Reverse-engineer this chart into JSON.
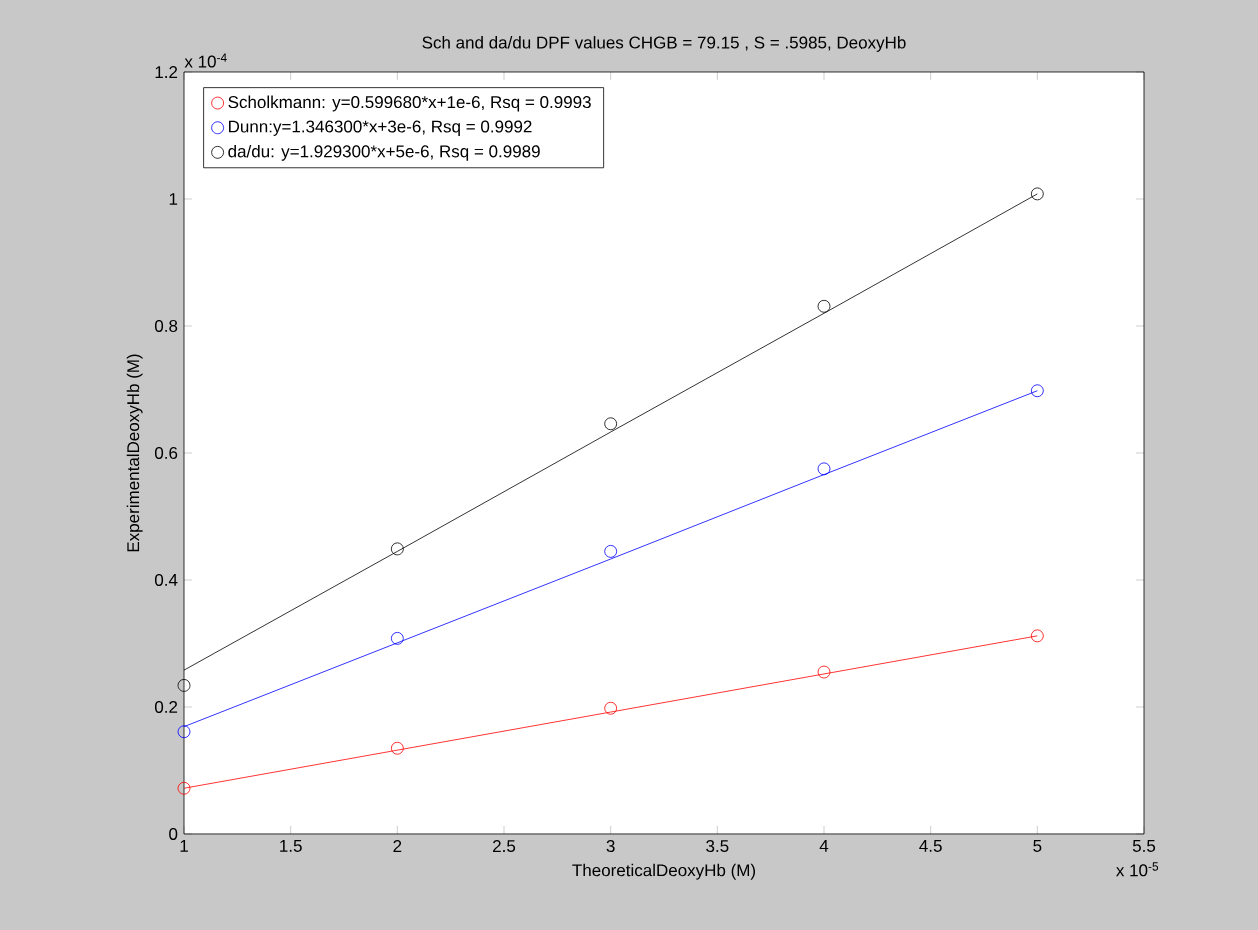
{
  "chart_data": {
    "type": "scatter",
    "title": "Sch and da/du DPF values CHGB = 79.15 , S = .5985, DeoxyHb",
    "xlabel": "TheoreticalDeoxyHb (M)",
    "ylabel": "ExperimentalDeoxyHb (M)",
    "annotations": [
      "x 10$^{-4}$",
      "x 10$^{-5}$"
    ],
    "x": [
      1,
      2,
      3,
      4,
      5
    ],
    "series": [
      {
        "name": "Scholkmann: y=0.599680*x+1e-6, Rsq = 0.9993",
        "color": "#ff0000",
        "marker": "circle",
        "values": [
          0.072,
          0.135,
          0.198,
          0.255,
          0.312
        ]
      },
      {
        "name": "Dunn:y=1.346300*x+3e-6, Rsq = 0.9992",
        "color": "#0000ff",
        "marker": "circle",
        "values": [
          0.161,
          0.308,
          0.445,
          0.575,
          0.698
        ]
      },
      {
        "name": "da/du: y=1.929300*x+5e-6, Rsq = 0.9989",
        "color": "#000000",
        "marker": "circle",
        "values": [
          0.234,
          0.449,
          0.646,
          0.831,
          1.008
        ]
      },
      {
        "type": "line",
        "color": "#ff0000",
        "marker": "none",
        "values": [
          0.072,
          0.132,
          0.192,
          0.252,
          0.312
        ]
      },
      {
        "type": "line",
        "color": "#0000ff",
        "marker": "none",
        "values": [
          0.169,
          0.301,
          0.433,
          0.566,
          0.698
        ]
      },
      {
        "type": "line",
        "color": "#000000",
        "marker": "none",
        "values": [
          0.258,
          0.445,
          0.633,
          0.82,
          1.008
        ]
      }
    ],
    "xlim": [
      1,
      5.5
    ],
    "xticks": [
      1,
      1.5,
      2,
      2.5,
      3,
      3.5,
      4,
      4.5,
      5,
      5.5
    ],
    "ylim": [
      0,
      1.2
    ],
    "yticks": [
      0,
      0.2,
      0.4,
      0.6,
      0.8,
      1,
      1.2
    ],
    "legend": "top left",
    "grid": false
  }
}
